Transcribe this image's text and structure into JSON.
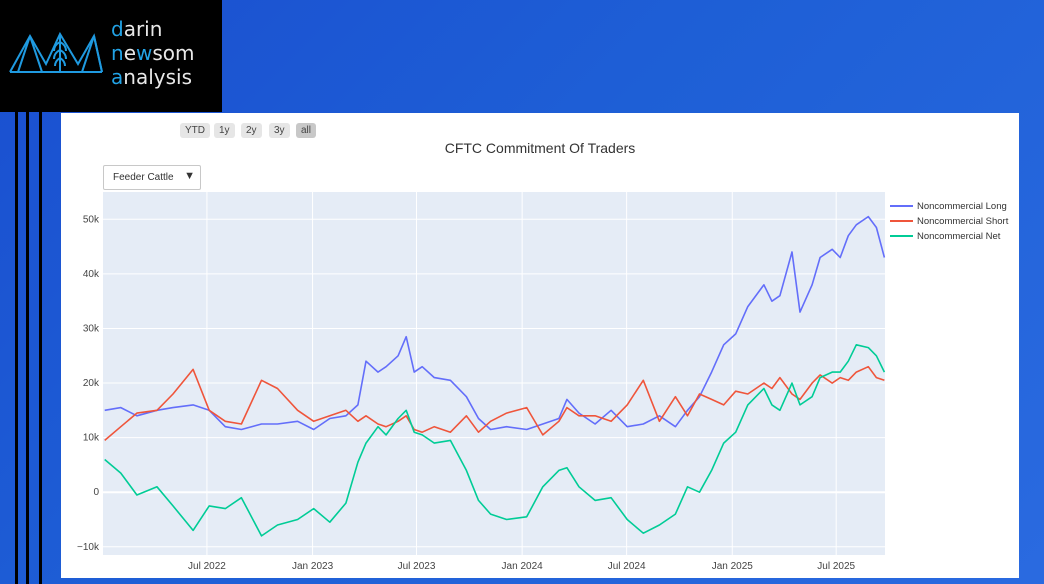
{
  "logo": {
    "line1_first": "d",
    "line1_rest": "arin",
    "line2_first": "n",
    "line2_mid": "e",
    "line2_accent2": "w",
    "line2_rest": "som",
    "line3_first": "a",
    "line3_rest": "nalysis"
  },
  "range_buttons": [
    "YTD",
    "1y",
    "2y",
    "3y",
    "all"
  ],
  "active_range": "all",
  "dropdown": {
    "selected": "Feeder Cattle",
    "arrow": "▼"
  },
  "chart_data": {
    "type": "line",
    "title": "CFTC Commitment Of Traders",
    "xlabel": "",
    "ylabel": "",
    "x_range": [
      "2022-01-01",
      "2025-09-24"
    ],
    "ylim": [
      -11500,
      55000
    ],
    "y_ticks": [
      -10000,
      0,
      10000,
      20000,
      30000,
      40000,
      50000
    ],
    "y_tick_labels": [
      "−10k",
      "0",
      "10k",
      "20k",
      "30k",
      "40k",
      "50k"
    ],
    "x_ticks": [
      "2022-07-01",
      "2023-01-01",
      "2023-07-01",
      "2024-01-01",
      "2024-07-01",
      "2025-01-01",
      "2025-07-01"
    ],
    "x_tick_labels": [
      "Jul 2022",
      "Jan 2023",
      "Jul 2023",
      "Jan 2024",
      "Jul 2024",
      "Jan 2025",
      "Jul 2025"
    ],
    "grid": true,
    "legend_position": "right",
    "colors": {
      "long": "#636efa",
      "short": "#ef553b",
      "net": "#00cc96",
      "plot_bg": "#e5ecf6",
      "grid": "#ffffff"
    },
    "series": [
      {
        "name": "Noncommercial Long",
        "key": "long",
        "x": [
          "2022-01-04",
          "2022-02-01",
          "2022-03-01",
          "2022-04-05",
          "2022-05-03",
          "2022-06-07",
          "2022-07-05",
          "2022-08-02",
          "2022-08-30",
          "2022-10-04",
          "2022-11-01",
          "2022-12-06",
          "2023-01-03",
          "2023-01-31",
          "2023-02-28",
          "2023-03-21",
          "2023-04-04",
          "2023-04-25",
          "2023-05-09",
          "2023-05-30",
          "2023-06-13",
          "2023-06-27",
          "2023-07-11",
          "2023-08-01",
          "2023-08-29",
          "2023-09-26",
          "2023-10-17",
          "2023-11-07",
          "2023-12-05",
          "2024-01-09",
          "2024-02-06",
          "2024-03-05",
          "2024-03-19",
          "2024-04-09",
          "2024-05-07",
          "2024-06-04",
          "2024-07-02",
          "2024-07-30",
          "2024-08-27",
          "2024-09-24",
          "2024-10-15",
          "2024-11-05",
          "2024-11-26",
          "2024-12-17",
          "2025-01-07",
          "2025-01-28",
          "2025-02-25",
          "2025-03-11",
          "2025-03-25",
          "2025-04-15",
          "2025-04-29",
          "2025-05-20",
          "2025-06-03",
          "2025-06-24",
          "2025-07-08",
          "2025-07-22",
          "2025-08-05",
          "2025-08-26",
          "2025-09-09",
          "2025-09-23"
        ],
        "values": [
          15000,
          15500,
          14000,
          15000,
          15500,
          16000,
          15000,
          12000,
          11500,
          12500,
          12500,
          13000,
          11500,
          13500,
          14000,
          16000,
          24000,
          22000,
          23000,
          25000,
          28500,
          22000,
          23000,
          21000,
          20500,
          17500,
          13500,
          11500,
          12000,
          11500,
          12500,
          13500,
          17000,
          14500,
          12500,
          15000,
          12000,
          12500,
          14000,
          12000,
          15000,
          17500,
          22000,
          27000,
          29000,
          34000,
          38000,
          35000,
          36000,
          44000,
          33000,
          38000,
          43000,
          44500,
          43000,
          47000,
          49000,
          50500,
          48500,
          43000
        ]
      },
      {
        "name": "Noncommercial Short",
        "key": "short",
        "x": [
          "2022-01-04",
          "2022-02-01",
          "2022-03-01",
          "2022-04-05",
          "2022-05-03",
          "2022-06-07",
          "2022-07-05",
          "2022-08-02",
          "2022-08-30",
          "2022-10-04",
          "2022-11-01",
          "2022-12-06",
          "2023-01-03",
          "2023-01-31",
          "2023-02-28",
          "2023-03-21",
          "2023-04-04",
          "2023-04-25",
          "2023-05-09",
          "2023-05-30",
          "2023-06-13",
          "2023-06-27",
          "2023-07-11",
          "2023-08-01",
          "2023-08-29",
          "2023-09-26",
          "2023-10-17",
          "2023-11-07",
          "2023-12-05",
          "2024-01-09",
          "2024-02-06",
          "2024-03-05",
          "2024-03-19",
          "2024-04-09",
          "2024-05-07",
          "2024-06-04",
          "2024-07-02",
          "2024-07-30",
          "2024-08-27",
          "2024-09-24",
          "2024-10-15",
          "2024-11-05",
          "2024-11-26",
          "2024-12-17",
          "2025-01-07",
          "2025-01-28",
          "2025-02-25",
          "2025-03-11",
          "2025-03-25",
          "2025-04-15",
          "2025-04-29",
          "2025-05-20",
          "2025-06-03",
          "2025-06-24",
          "2025-07-08",
          "2025-07-22",
          "2025-08-05",
          "2025-08-26",
          "2025-09-09",
          "2025-09-23"
        ],
        "values": [
          9500,
          12000,
          14500,
          15000,
          18000,
          22500,
          15000,
          13000,
          12500,
          20500,
          19000,
          15000,
          13000,
          14000,
          15000,
          13000,
          14000,
          12500,
          12000,
          13000,
          14000,
          11500,
          11000,
          12000,
          11000,
          14000,
          11000,
          13000,
          14500,
          15500,
          10500,
          13000,
          15500,
          14000,
          14000,
          13000,
          16000,
          20500,
          13000,
          17500,
          14000,
          18000,
          17000,
          16000,
          18500,
          18000,
          20000,
          19000,
          21000,
          18000,
          17000,
          20000,
          21500,
          20000,
          21000,
          20500,
          22000,
          23000,
          21000,
          20500
        ]
      },
      {
        "name": "Noncommercial Net",
        "key": "net",
        "x": [
          "2022-01-04",
          "2022-02-01",
          "2022-03-01",
          "2022-04-05",
          "2022-05-03",
          "2022-06-07",
          "2022-07-05",
          "2022-08-02",
          "2022-08-30",
          "2022-10-04",
          "2022-11-01",
          "2022-12-06",
          "2023-01-03",
          "2023-01-31",
          "2023-02-28",
          "2023-03-21",
          "2023-04-04",
          "2023-04-25",
          "2023-05-09",
          "2023-05-30",
          "2023-06-13",
          "2023-06-27",
          "2023-07-11",
          "2023-08-01",
          "2023-08-29",
          "2023-09-26",
          "2023-10-17",
          "2023-11-07",
          "2023-12-05",
          "2024-01-09",
          "2024-02-06",
          "2024-03-05",
          "2024-03-19",
          "2024-04-09",
          "2024-05-07",
          "2024-06-04",
          "2024-07-02",
          "2024-07-30",
          "2024-08-27",
          "2024-09-24",
          "2024-10-15",
          "2024-11-05",
          "2024-11-26",
          "2024-12-17",
          "2025-01-07",
          "2025-01-28",
          "2025-02-25",
          "2025-03-11",
          "2025-03-25",
          "2025-04-15",
          "2025-04-29",
          "2025-05-20",
          "2025-06-03",
          "2025-06-24",
          "2025-07-08",
          "2025-07-22",
          "2025-08-05",
          "2025-08-26",
          "2025-09-09",
          "2025-09-23"
        ],
        "values": [
          6000,
          3500,
          -500,
          1000,
          -2500,
          -7000,
          -2500,
          -3000,
          -1000,
          -8000,
          -6000,
          -5000,
          -3000,
          -5500,
          -2000,
          5500,
          9000,
          12000,
          10500,
          13500,
          15000,
          11000,
          10500,
          9000,
          9500,
          4000,
          -1500,
          -4000,
          -5000,
          -4500,
          1000,
          4000,
          4500,
          1000,
          -1500,
          -1000,
          -5000,
          -7500,
          -6000,
          -4000,
          1000,
          0,
          4000,
          9000,
          11000,
          16000,
          19000,
          16000,
          15000,
          20000,
          16000,
          17500,
          21000,
          22000,
          22000,
          24000,
          27000,
          26500,
          25000,
          22000
        ]
      }
    ]
  }
}
